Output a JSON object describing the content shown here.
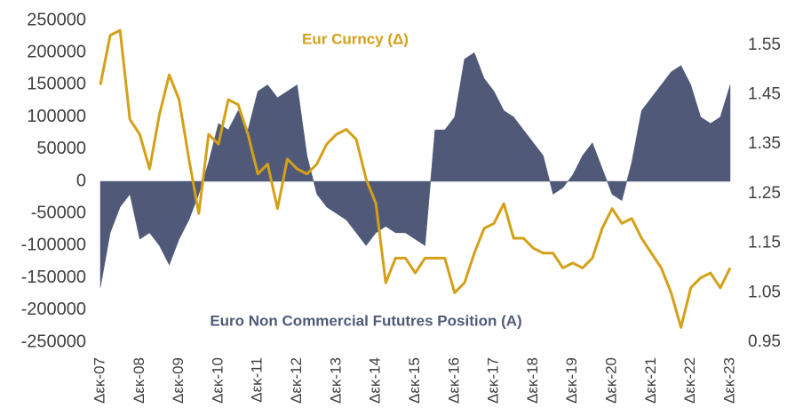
{
  "chart_data": {
    "type": "area_line",
    "categories": [
      "Δεκ-07",
      null,
      null,
      null,
      "Δεκ-08",
      null,
      null,
      null,
      "Δεκ-09",
      null,
      null,
      null,
      "Δεκ-10",
      null,
      null,
      null,
      "Δεκ-11",
      null,
      null,
      null,
      "Δεκ-12",
      null,
      null,
      null,
      "Δεκ-13",
      null,
      null,
      null,
      "Δεκ-14",
      null,
      null,
      null,
      "Δεκ-15",
      null,
      null,
      null,
      "Δεκ-16",
      null,
      null,
      null,
      "Δεκ-17",
      null,
      null,
      null,
      "Δεκ-18",
      null,
      null,
      null,
      "Δεκ-19",
      null,
      null,
      null,
      "Δεκ-20",
      null,
      null,
      null,
      "Δεκ-21",
      null,
      null,
      null,
      "Δεκ-22",
      null,
      null,
      null,
      "Δεκ-23"
    ],
    "series": [
      {
        "name": "Euro Non Commercial Fututres Position (A)",
        "color": "#505a78",
        "type": "area",
        "values": [
          -165000,
          -80000,
          -40000,
          -20000,
          -90000,
          -80000,
          -100000,
          -130000,
          -90000,
          -60000,
          -20000,
          30000,
          90000,
          80000,
          110000,
          80000,
          140000,
          150000,
          130000,
          140000,
          150000,
          40000,
          -20000,
          -40000,
          -50000,
          -60000,
          -80000,
          -100000,
          -80000,
          -70000,
          -80000,
          -80000,
          -90000,
          -100000,
          80000,
          80000,
          100000,
          190000,
          200000,
          160000,
          140000,
          110000,
          100000,
          80000,
          60000,
          40000,
          -20000,
          -10000,
          10000,
          40000,
          60000,
          20000,
          -20000,
          -30000,
          30000,
          110000,
          130000,
          150000,
          170000,
          180000,
          150000,
          100000,
          90000,
          100000,
          150000
        ]
      },
      {
        "name": "Eur Curncy (Δ)",
        "color": "#d4a017",
        "type": "line",
        "axis": "y2",
        "values": [
          1.47,
          1.57,
          1.58,
          1.4,
          1.37,
          1.3,
          1.41,
          1.49,
          1.44,
          1.32,
          1.21,
          1.37,
          1.35,
          1.44,
          1.43,
          1.37,
          1.29,
          1.31,
          1.22,
          1.32,
          1.3,
          1.29,
          1.31,
          1.35,
          1.37,
          1.38,
          1.36,
          1.28,
          1.23,
          1.07,
          1.12,
          1.12,
          1.09,
          1.12,
          1.12,
          1.12,
          1.05,
          1.07,
          1.13,
          1.18,
          1.19,
          1.23,
          1.16,
          1.16,
          1.14,
          1.13,
          1.13,
          1.1,
          1.11,
          1.1,
          1.12,
          1.18,
          1.22,
          1.19,
          1.2,
          1.16,
          1.13,
          1.1,
          1.05,
          0.98,
          1.06,
          1.08,
          1.09,
          1.06,
          1.1
        ]
      }
    ],
    "ylim": [
      -250000,
      250000
    ],
    "yticks": [
      -250000,
      -200000,
      -150000,
      -100000,
      -50000,
      0,
      50000,
      100000,
      150000,
      200000,
      250000
    ],
    "y2lim": [
      0.95,
      1.6
    ],
    "y2ticks": [
      0.95,
      1.05,
      1.15,
      1.25,
      1.35,
      1.45,
      1.55
    ]
  }
}
